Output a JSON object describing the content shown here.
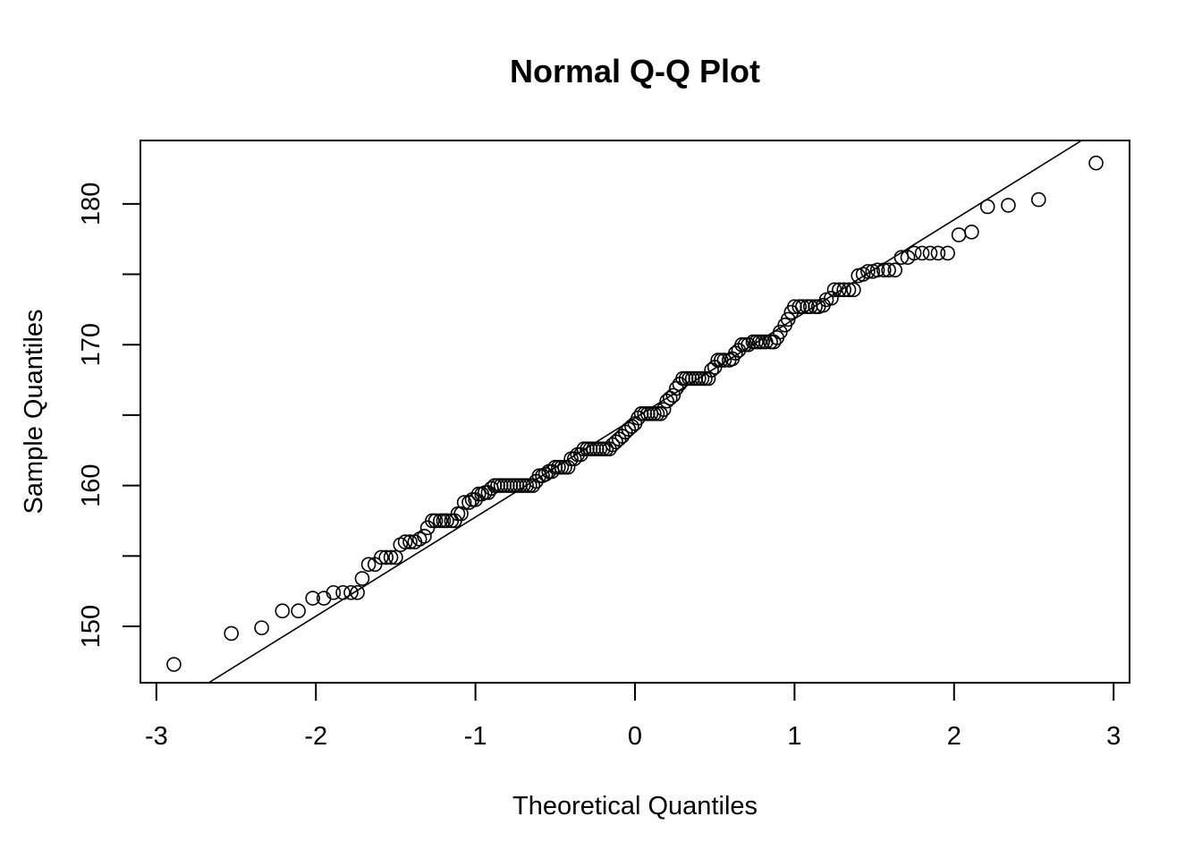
{
  "chart_data": {
    "type": "scatter",
    "title": "Normal Q-Q Plot",
    "xlabel": "Theoretical Quantiles",
    "ylabel": "Sample Quantiles",
    "xlim": [
      -3.1,
      3.1
    ],
    "ylim": [
      146.0,
      184.5
    ],
    "x_ticks": [
      -3,
      -2,
      -1,
      0,
      1,
      2,
      3
    ],
    "x_tick_labels": [
      "-3",
      "-2",
      "-1",
      "0",
      "1",
      "2",
      "3"
    ],
    "y_ticks": [
      150,
      155,
      160,
      165,
      170,
      175,
      180
    ],
    "y_tick_labels": [
      "150",
      "",
      "160",
      "",
      "170",
      "",
      "180"
    ],
    "grid": false,
    "legend": "none",
    "reference_line": {
      "x1": -2.7,
      "y1": 145.8,
      "x2": 2.8,
      "y2": 184.5
    },
    "points": [
      [
        -2.89,
        147.3
      ],
      [
        -2.53,
        149.5
      ],
      [
        -2.34,
        149.9
      ],
      [
        -2.21,
        151.1
      ],
      [
        -2.11,
        151.1
      ],
      [
        -2.02,
        152.0
      ],
      [
        -1.95,
        152.0
      ],
      [
        -1.89,
        152.4
      ],
      [
        -1.83,
        152.4
      ],
      [
        -1.78,
        152.4
      ],
      [
        -1.74,
        152.4
      ],
      [
        -1.71,
        153.4
      ],
      [
        -1.67,
        154.4
      ],
      [
        -1.63,
        154.4
      ],
      [
        -1.59,
        154.9
      ],
      [
        -1.56,
        154.9
      ],
      [
        -1.53,
        154.9
      ],
      [
        -1.5,
        154.9
      ],
      [
        -1.47,
        155.8
      ],
      [
        -1.44,
        156.0
      ],
      [
        -1.41,
        156.0
      ],
      [
        -1.38,
        156.0
      ],
      [
        -1.35,
        156.2
      ],
      [
        -1.32,
        156.4
      ],
      [
        -1.3,
        157.0
      ],
      [
        -1.27,
        157.5
      ],
      [
        -1.25,
        157.5
      ],
      [
        -1.22,
        157.5
      ],
      [
        -1.2,
        157.5
      ],
      [
        -1.18,
        157.5
      ],
      [
        -1.15,
        157.5
      ],
      [
        -1.13,
        157.5
      ],
      [
        -1.11,
        158.0
      ],
      [
        -1.09,
        158.0
      ],
      [
        -1.07,
        158.8
      ],
      [
        -1.04,
        158.8
      ],
      [
        -1.02,
        159.0
      ],
      [
        -1.0,
        159.0
      ],
      [
        -0.98,
        159.4
      ],
      [
        -0.96,
        159.4
      ],
      [
        -0.94,
        159.5
      ],
      [
        -0.92,
        159.5
      ],
      [
        -0.9,
        159.8
      ],
      [
        -0.88,
        160.0
      ],
      [
        -0.86,
        160.0
      ],
      [
        -0.84,
        160.0
      ],
      [
        -0.82,
        160.0
      ],
      [
        -0.8,
        160.0
      ],
      [
        -0.78,
        160.0
      ],
      [
        -0.76,
        160.0
      ],
      [
        -0.74,
        160.0
      ],
      [
        -0.72,
        160.0
      ],
      [
        -0.7,
        160.0
      ],
      [
        -0.68,
        160.0
      ],
      [
        -0.66,
        160.0
      ],
      [
        -0.64,
        160.0
      ],
      [
        -0.62,
        160.3
      ],
      [
        -0.6,
        160.7
      ],
      [
        -0.58,
        160.7
      ],
      [
        -0.56,
        160.8
      ],
      [
        -0.54,
        161.0
      ],
      [
        -0.52,
        161.0
      ],
      [
        -0.5,
        161.3
      ],
      [
        -0.48,
        161.3
      ],
      [
        -0.46,
        161.3
      ],
      [
        -0.44,
        161.3
      ],
      [
        -0.42,
        161.3
      ],
      [
        -0.4,
        161.9
      ],
      [
        -0.38,
        161.9
      ],
      [
        -0.36,
        162.2
      ],
      [
        -0.34,
        162.2
      ],
      [
        -0.32,
        162.6
      ],
      [
        -0.3,
        162.6
      ],
      [
        -0.28,
        162.6
      ],
      [
        -0.26,
        162.6
      ],
      [
        -0.24,
        162.6
      ],
      [
        -0.22,
        162.6
      ],
      [
        -0.2,
        162.6
      ],
      [
        -0.18,
        162.6
      ],
      [
        -0.16,
        162.6
      ],
      [
        -0.14,
        162.9
      ],
      [
        -0.12,
        163.1
      ],
      [
        -0.1,
        163.3
      ],
      [
        -0.08,
        163.5
      ],
      [
        -0.06,
        163.8
      ],
      [
        -0.04,
        164.0
      ],
      [
        -0.02,
        164.2
      ],
      [
        0.0,
        164.4
      ],
      [
        0.02,
        164.8
      ],
      [
        0.04,
        165.1
      ],
      [
        0.06,
        165.1
      ],
      [
        0.08,
        165.1
      ],
      [
        0.1,
        165.1
      ],
      [
        0.12,
        165.1
      ],
      [
        0.14,
        165.1
      ],
      [
        0.16,
        165.1
      ],
      [
        0.18,
        165.4
      ],
      [
        0.2,
        166.0
      ],
      [
        0.22,
        166.2
      ],
      [
        0.24,
        166.4
      ],
      [
        0.26,
        166.9
      ],
      [
        0.28,
        167.2
      ],
      [
        0.3,
        167.6
      ],
      [
        0.32,
        167.6
      ],
      [
        0.34,
        167.6
      ],
      [
        0.36,
        167.6
      ],
      [
        0.38,
        167.6
      ],
      [
        0.4,
        167.6
      ],
      [
        0.42,
        167.6
      ],
      [
        0.44,
        167.6
      ],
      [
        0.46,
        167.6
      ],
      [
        0.48,
        168.2
      ],
      [
        0.5,
        168.4
      ],
      [
        0.52,
        168.9
      ],
      [
        0.54,
        168.9
      ],
      [
        0.56,
        168.9
      ],
      [
        0.59,
        168.9
      ],
      [
        0.61,
        169.0
      ],
      [
        0.63,
        169.4
      ],
      [
        0.65,
        169.6
      ],
      [
        0.67,
        170.0
      ],
      [
        0.69,
        170.0
      ],
      [
        0.71,
        170.0
      ],
      [
        0.74,
        170.2
      ],
      [
        0.76,
        170.2
      ],
      [
        0.78,
        170.2
      ],
      [
        0.8,
        170.2
      ],
      [
        0.82,
        170.2
      ],
      [
        0.85,
        170.2
      ],
      [
        0.87,
        170.2
      ],
      [
        0.89,
        170.5
      ],
      [
        0.91,
        170.9
      ],
      [
        0.94,
        171.4
      ],
      [
        0.96,
        171.8
      ],
      [
        0.98,
        172.3
      ],
      [
        1.0,
        172.7
      ],
      [
        1.03,
        172.7
      ],
      [
        1.05,
        172.7
      ],
      [
        1.08,
        172.7
      ],
      [
        1.1,
        172.7
      ],
      [
        1.13,
        172.7
      ],
      [
        1.15,
        172.7
      ],
      [
        1.18,
        172.8
      ],
      [
        1.2,
        173.2
      ],
      [
        1.23,
        173.3
      ],
      [
        1.25,
        173.9
      ],
      [
        1.28,
        173.9
      ],
      [
        1.31,
        173.9
      ],
      [
        1.34,
        173.9
      ],
      [
        1.37,
        173.9
      ],
      [
        1.4,
        174.9
      ],
      [
        1.43,
        175.0
      ],
      [
        1.46,
        175.2
      ],
      [
        1.49,
        175.2
      ],
      [
        1.52,
        175.3
      ],
      [
        1.56,
        175.3
      ],
      [
        1.59,
        175.3
      ],
      [
        1.63,
        175.3
      ],
      [
        1.67,
        176.2
      ],
      [
        1.71,
        176.2
      ],
      [
        1.75,
        176.5
      ],
      [
        1.8,
        176.5
      ],
      [
        1.85,
        176.5
      ],
      [
        1.9,
        176.5
      ],
      [
        1.96,
        176.5
      ],
      [
        2.03,
        177.8
      ],
      [
        2.11,
        178.0
      ],
      [
        2.21,
        179.8
      ],
      [
        2.34,
        179.9
      ],
      [
        2.53,
        180.3
      ],
      [
        2.89,
        182.9
      ]
    ]
  }
}
